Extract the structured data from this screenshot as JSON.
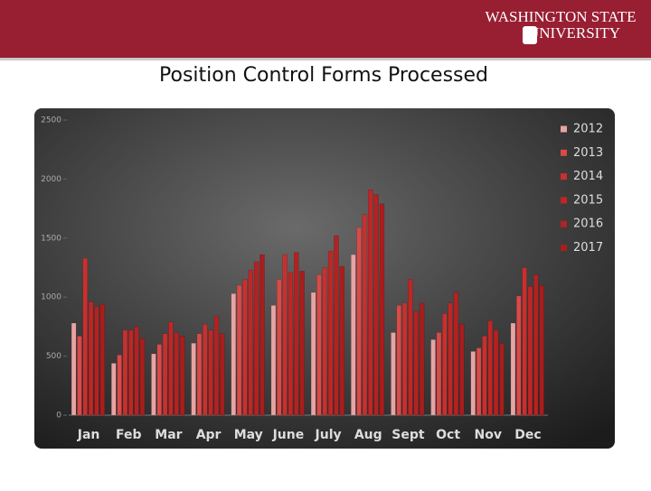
{
  "header": {
    "logo_line1": "WASHINGTON STATE",
    "logo_line2": "UNIVERSITY"
  },
  "chart_data": {
    "type": "bar",
    "title": "Position Control Forms Processed",
    "categories": [
      "Jan",
      "Feb",
      "Mar",
      "Apr",
      "May",
      "June",
      "July",
      "Aug",
      "Sept",
      "Oct",
      "Nov",
      "Dec"
    ],
    "series": [
      {
        "name": "2012",
        "color": "#e8a3a3",
        "values": [
          780,
          440,
          520,
          610,
          1030,
          930,
          1040,
          1360,
          700,
          640,
          540,
          780
        ]
      },
      {
        "name": "2013",
        "color": "#d94a48",
        "values": [
          670,
          510,
          600,
          690,
          1100,
          1150,
          1190,
          1590,
          930,
          700,
          570,
          1010
        ]
      },
      {
        "name": "2014",
        "color": "#c8302e",
        "values": [
          1330,
          720,
          690,
          770,
          1150,
          1360,
          1250,
          1700,
          950,
          860,
          670,
          1250
        ]
      },
      {
        "name": "2015",
        "color": "#bd2726",
        "values": [
          960,
          720,
          790,
          720,
          1230,
          1210,
          1390,
          1910,
          1150,
          950,
          800,
          1090
        ]
      },
      {
        "name": "2016",
        "color": "#b32222",
        "values": [
          920,
          750,
          700,
          840,
          1300,
          1380,
          1520,
          1870,
          880,
          1040,
          720,
          1190
        ]
      },
      {
        "name": "2017",
        "color": "#a81d1d",
        "values": [
          940,
          650,
          670,
          690,
          1360,
          1220,
          1260,
          1790,
          950,
          770,
          610,
          1100
        ]
      }
    ],
    "ylim": [
      0,
      2500
    ],
    "yticks": [
      0,
      500,
      1000,
      1500,
      2000,
      2500
    ],
    "legend": "right"
  }
}
